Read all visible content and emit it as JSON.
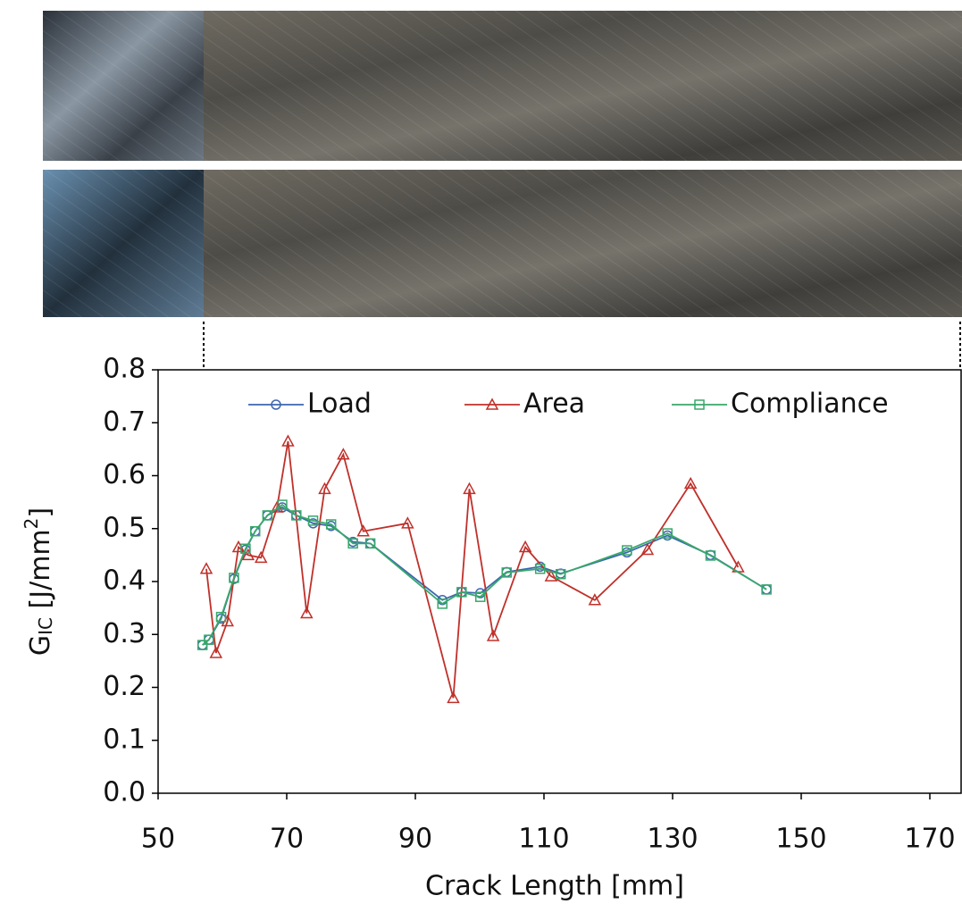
{
  "chart_data": {
    "type": "line",
    "xlabel": "Crack Length [mm]",
    "ylabel": {
      "main": "G",
      "sub": "IC",
      "unit": " [J/mm",
      "sup": "2",
      "close": "]"
    },
    "xlim": [
      50,
      175
    ],
    "xticks": [
      50,
      70,
      90,
      110,
      130,
      150,
      170
    ],
    "ylim": [
      0,
      0.8
    ],
    "yticks": [
      {
        "value": 0,
        "label": "0.0"
      },
      0.1,
      0.2,
      0.3,
      0.4,
      0.5,
      0.6,
      0.7,
      0.8
    ],
    "legend": "top",
    "series": [
      {
        "name": "Load",
        "color": "#3d66b0",
        "marker": "circle",
        "x": [
          56.9,
          57.9,
          59.8,
          61.8,
          63.6,
          65.1,
          67.0,
          69.3,
          71.5,
          74.1,
          76.9,
          80.3,
          83.0,
          94.2,
          97.2,
          100.1,
          104.2,
          109.4,
          112.6,
          122.9,
          129.2,
          135.9,
          144.6
        ],
        "values": [
          0.28,
          0.29,
          0.33,
          0.405,
          0.46,
          0.495,
          0.525,
          0.54,
          0.525,
          0.51,
          0.505,
          0.475,
          0.472,
          0.365,
          0.38,
          0.378,
          0.418,
          0.428,
          0.415,
          0.455,
          0.487,
          0.45,
          0.385
        ]
      },
      {
        "name": "Area",
        "color": "#c0302a",
        "marker": "triangle",
        "x": [
          57.5,
          59.0,
          60.8,
          62.5,
          64.0,
          66.0,
          68.5,
          70.2,
          73.1,
          75.9,
          78.8,
          81.9,
          88.8,
          95.9,
          98.4,
          102.1,
          107.1,
          111.1,
          117.9,
          126.1,
          132.8,
          140.2
        ],
        "values": [
          0.424,
          0.265,
          0.325,
          0.465,
          0.45,
          0.445,
          0.54,
          0.665,
          0.34,
          0.575,
          0.64,
          0.495,
          0.51,
          0.18,
          0.575,
          0.297,
          0.465,
          0.41,
          0.365,
          0.46,
          0.585,
          0.427
        ]
      },
      {
        "name": "Compliance",
        "color": "#38a86a",
        "marker": "square",
        "x": [
          56.9,
          57.9,
          59.8,
          61.8,
          63.6,
          65.1,
          67.0,
          69.3,
          71.5,
          74.1,
          76.9,
          80.3,
          83.0,
          94.2,
          97.2,
          100.1,
          104.2,
          109.4,
          112.6,
          122.9,
          129.2,
          135.9,
          144.6
        ],
        "values": [
          0.28,
          0.29,
          0.333,
          0.407,
          0.462,
          0.495,
          0.525,
          0.545,
          0.525,
          0.515,
          0.508,
          0.472,
          0.472,
          0.358,
          0.38,
          0.371,
          0.417,
          0.424,
          0.414,
          0.459,
          0.491,
          0.449,
          0.385
        ]
      }
    ]
  }
}
